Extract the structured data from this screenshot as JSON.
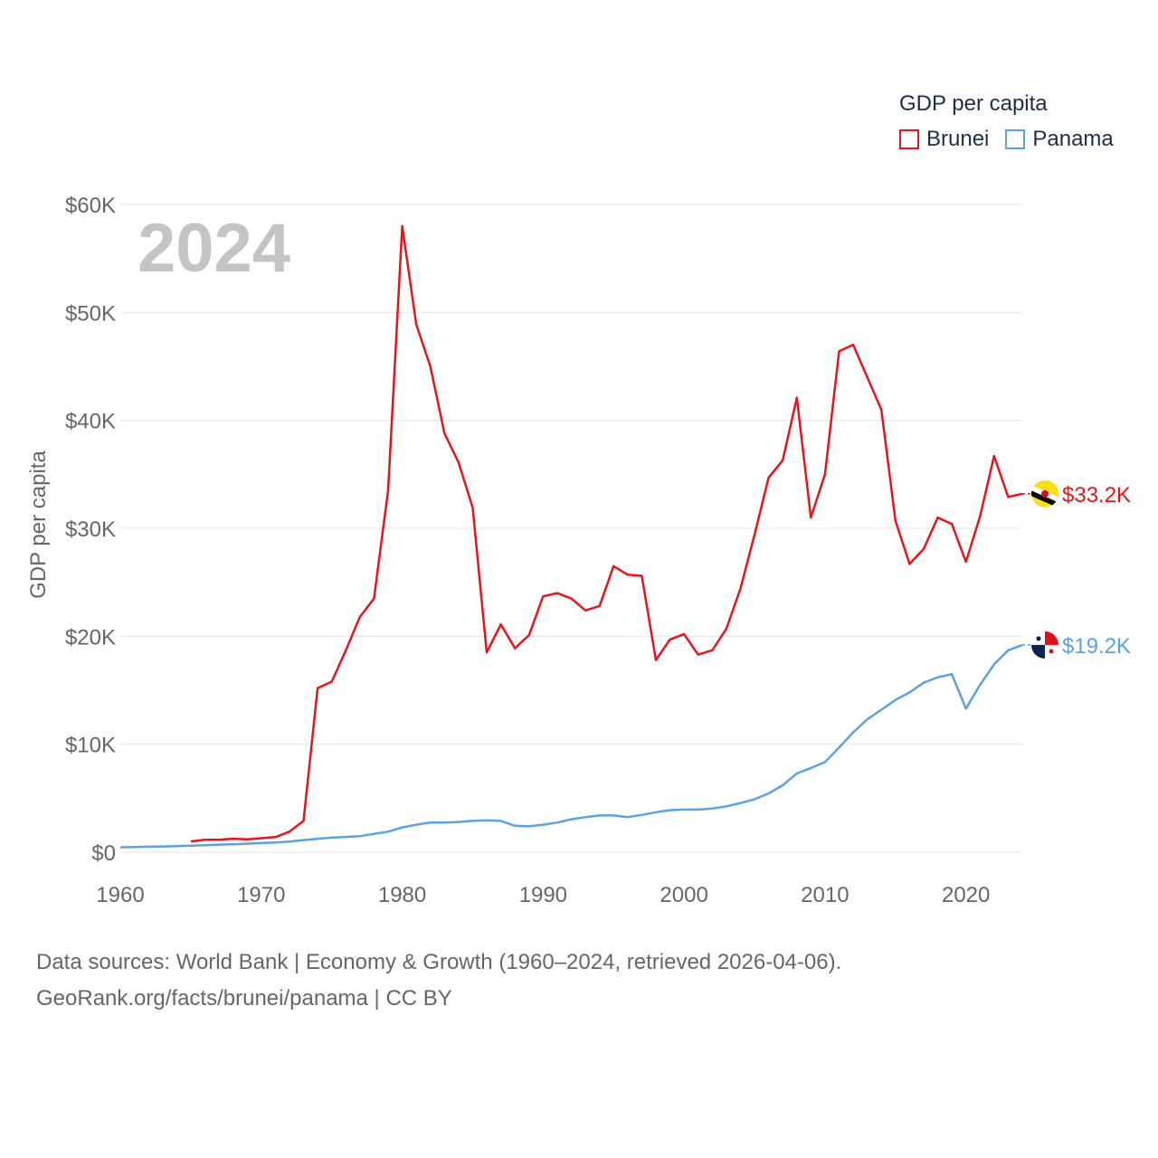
{
  "chart_data": {
    "type": "line",
    "year_watermark": "2024",
    "ylabel": "GDP per capita",
    "xlabel": "",
    "xlim": [
      1960,
      2024
    ],
    "ylim": [
      0,
      60000
    ],
    "x_ticks": [
      1960,
      1970,
      1980,
      1990,
      2000,
      2010,
      2020
    ],
    "y_ticks": [
      {
        "value": 0,
        "label": "$0"
      },
      {
        "value": 10000,
        "label": "$10K"
      },
      {
        "value": 20000,
        "label": "$20K"
      },
      {
        "value": 30000,
        "label": "$30K"
      },
      {
        "value": 40000,
        "label": "$40K"
      },
      {
        "value": 50000,
        "label": "$50K"
      },
      {
        "value": 60000,
        "label": "$60K"
      }
    ],
    "grid": true,
    "legend": {
      "title": "GDP per capita",
      "position": "top-right",
      "entries": [
        "Brunei",
        "Panama"
      ]
    },
    "series": [
      {
        "name": "Brunei",
        "color": "#e8141b",
        "end_label": "$33.2K",
        "flag": "brunei-flag",
        "x": [
          1965,
          1966,
          1967,
          1968,
          1969,
          1970,
          1971,
          1972,
          1973,
          1974,
          1975,
          1976,
          1977,
          1978,
          1979,
          1980,
          1981,
          1982,
          1983,
          1984,
          1985,
          1986,
          1987,
          1988,
          1989,
          1990,
          1991,
          1992,
          1993,
          1994,
          1995,
          1996,
          1997,
          1998,
          1999,
          2000,
          2001,
          2002,
          2003,
          2004,
          2005,
          2006,
          2007,
          2008,
          2009,
          2010,
          2011,
          2012,
          2013,
          2014,
          2015,
          2016,
          2017,
          2018,
          2019,
          2020,
          2021,
          2022,
          2023,
          2024
        ],
        "values": [
          1000,
          1150,
          1150,
          1250,
          1200,
          1300,
          1400,
          1900,
          2900,
          15200,
          15800,
          18700,
          21800,
          23500,
          33500,
          58000,
          48900,
          45000,
          38800,
          36100,
          31900,
          18500,
          21100,
          18900,
          20100,
          23700,
          24000,
          23500,
          22400,
          22800,
          26500,
          25700,
          25600,
          17800,
          19700,
          20200,
          18300,
          18700,
          20700,
          24400,
          29400,
          34700,
          36300,
          42100,
          31000,
          35000,
          46400,
          47000,
          44000,
          41000,
          30700,
          26700,
          28100,
          31000,
          30400,
          26900,
          31100,
          36700,
          32900,
          33200
        ]
      },
      {
        "name": "Panama",
        "color": "#5aa2e0",
        "end_label": "$19.2K",
        "flag": "panama-flag",
        "x": [
          1960,
          1961,
          1962,
          1963,
          1964,
          1965,
          1966,
          1967,
          1968,
          1969,
          1970,
          1971,
          1972,
          1973,
          1974,
          1975,
          1976,
          1977,
          1978,
          1979,
          1980,
          1981,
          1982,
          1983,
          1984,
          1985,
          1986,
          1987,
          1988,
          1989,
          1990,
          1991,
          1992,
          1993,
          1994,
          1995,
          1996,
          1997,
          1998,
          1999,
          2000,
          2001,
          2002,
          2003,
          2004,
          2005,
          2006,
          2007,
          2008,
          2009,
          2010,
          2011,
          2012,
          2013,
          2014,
          2015,
          2016,
          2017,
          2018,
          2019,
          2020,
          2021,
          2022,
          2023,
          2024
        ],
        "values": [
          450,
          480,
          510,
          540,
          570,
          610,
          650,
          700,
          740,
          790,
          850,
          900,
          980,
          1120,
          1250,
          1350,
          1420,
          1480,
          1700,
          1900,
          2300,
          2550,
          2750,
          2750,
          2800,
          2900,
          2950,
          2900,
          2450,
          2400,
          2550,
          2750,
          3050,
          3250,
          3400,
          3400,
          3250,
          3450,
          3700,
          3900,
          3950,
          3950,
          4050,
          4250,
          4550,
          4900,
          5450,
          6200,
          7300,
          7800,
          8350,
          9700,
          11100,
          12300,
          13200,
          14100,
          14800,
          15700,
          16200,
          16500,
          13300,
          15500,
          17400,
          18700,
          19200
        ]
      }
    ]
  },
  "footer": {
    "line1": "Data sources: World Bank | Economy & Growth (1960–2024, retrieved 2026-04-06).",
    "line2": "GeoRank.org/facts/brunei/panama | CC BY"
  }
}
